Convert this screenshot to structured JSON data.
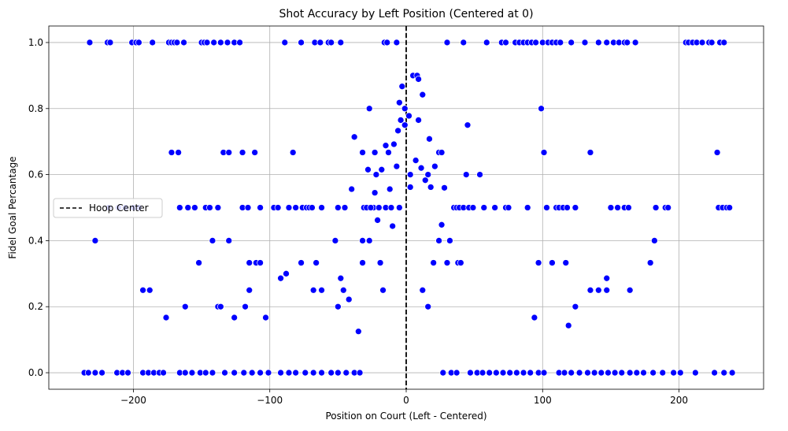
{
  "chart_data": {
    "type": "scatter",
    "title": "Shot Accuracy by Left Position (Centered at 0)",
    "xlabel": "Position on Court (Left - Centered)",
    "ylabel": "Fidel Goal Percantage",
    "xlim": [
      -262,
      262
    ],
    "ylim": [
      -0.05,
      1.05
    ],
    "xticks": [
      -200,
      -100,
      0,
      100,
      200
    ],
    "xtick_labels": [
      "−200",
      "−100",
      "0",
      "100",
      "200"
    ],
    "yticks": [
      0.0,
      0.2,
      0.4,
      0.6,
      0.8,
      1.0
    ],
    "ytick_labels": [
      "0.0",
      "0.2",
      "0.4",
      "0.6",
      "0.8",
      "1.0"
    ],
    "grid": true,
    "legend_position": "center-left",
    "reference_line": {
      "x": 0,
      "label": "Hoop Center",
      "style": "dashed",
      "color": "#000000"
    },
    "point_color": "#0000ff",
    "series": [
      {
        "points": [
          [
            -232,
            1
          ],
          [
            -219,
            1
          ],
          [
            -217,
            1
          ],
          [
            -201,
            1
          ],
          [
            -198,
            1
          ],
          [
            -196,
            1
          ],
          [
            -186,
            1
          ],
          [
            -174,
            1
          ],
          [
            -172,
            1
          ],
          [
            -170,
            1
          ],
          [
            -168,
            1
          ],
          [
            -163,
            1
          ],
          [
            -150,
            1
          ],
          [
            -148,
            1
          ],
          [
            -146,
            1
          ],
          [
            -141,
            1
          ],
          [
            -136,
            1
          ],
          [
            -131,
            1
          ],
          [
            -126,
            1
          ],
          [
            -122,
            1
          ],
          [
            -89,
            1
          ],
          [
            -77,
            1
          ],
          [
            -67,
            1
          ],
          [
            -63,
            1
          ],
          [
            -57,
            1
          ],
          [
            -55,
            1
          ],
          [
            -48,
            1
          ],
          [
            -16,
            1
          ],
          [
            -14,
            1
          ],
          [
            -7,
            1
          ],
          [
            30,
            1
          ],
          [
            42,
            1
          ],
          [
            59,
            1
          ],
          [
            70,
            1
          ],
          [
            73,
            1
          ],
          [
            80,
            1
          ],
          [
            83,
            1
          ],
          [
            86,
            1
          ],
          [
            89,
            1
          ],
          [
            92,
            1
          ],
          [
            95,
            1
          ],
          [
            100,
            1
          ],
          [
            104,
            1
          ],
          [
            107,
            1
          ],
          [
            110,
            1
          ],
          [
            113,
            1
          ],
          [
            121,
            1
          ],
          [
            131,
            1
          ],
          [
            141,
            1
          ],
          [
            147,
            1
          ],
          [
            152,
            1
          ],
          [
            156,
            1
          ],
          [
            160,
            1
          ],
          [
            162,
            1
          ],
          [
            168,
            1
          ],
          [
            205,
            1
          ],
          [
            207,
            1
          ],
          [
            210,
            1
          ],
          [
            213,
            1
          ],
          [
            217,
            1
          ],
          [
            222,
            1
          ],
          [
            224,
            1
          ],
          [
            230,
            1
          ],
          [
            233,
            1
          ],
          [
            -228,
            0.4
          ],
          [
            -172,
            0.667
          ],
          [
            -167,
            0.667
          ],
          [
            -83,
            0.667
          ],
          [
            -134,
            0.667
          ],
          [
            -130,
            0.667
          ],
          [
            -120,
            0.667
          ],
          [
            -111,
            0.667
          ],
          [
            -38,
            0.714
          ],
          [
            -32,
            0.667
          ],
          [
            -23,
            0.667
          ],
          [
            -27,
            0.8
          ],
          [
            -218,
            0.5
          ],
          [
            -211,
            0.5
          ],
          [
            -206,
            0.5
          ],
          [
            -200,
            0.5
          ],
          [
            -196,
            0.5
          ],
          [
            -166,
            0.5
          ],
          [
            -160,
            0.5
          ],
          [
            -155,
            0.5
          ],
          [
            -147,
            0.5
          ],
          [
            -144,
            0.5
          ],
          [
            -138,
            0.5
          ],
          [
            -120,
            0.5
          ],
          [
            -116,
            0.5
          ],
          [
            -107,
            0.5
          ],
          [
            -97,
            0.5
          ],
          [
            -94,
            0.5
          ],
          [
            -86,
            0.5
          ],
          [
            -81,
            0.5
          ],
          [
            -76,
            0.5
          ],
          [
            -73,
            0.5
          ],
          [
            -71,
            0.5
          ],
          [
            -69,
            0.5
          ],
          [
            -62,
            0.5
          ],
          [
            -50,
            0.5
          ],
          [
            -45,
            0.5
          ],
          [
            -31,
            0.5
          ],
          [
            -29,
            0.5
          ],
          [
            -24,
            0.5
          ],
          [
            -20,
            0.5
          ],
          [
            -15,
            0.5
          ],
          [
            -11,
            0.5
          ],
          [
            -5,
            0.5
          ],
          [
            -40,
            0.556
          ],
          [
            -32,
            0.4
          ],
          [
            -27,
            0.4
          ],
          [
            -26,
            0.5
          ],
          [
            -23,
            0.545
          ],
          [
            -21,
            0.462
          ],
          [
            -22,
            0.6
          ],
          [
            -28,
            0.615
          ],
          [
            -18,
            0.615
          ],
          [
            -15,
            0.688
          ],
          [
            -13,
            0.667
          ],
          [
            -12,
            0.556
          ],
          [
            -9,
            0.692
          ],
          [
            -10,
            0.444
          ],
          [
            -7,
            0.625
          ],
          [
            -6,
            0.733
          ],
          [
            -5,
            0.818
          ],
          [
            -3,
            0.867
          ],
          [
            -4,
            0.765
          ],
          [
            -1,
            0.8
          ],
          [
            -1,
            0.75
          ],
          [
            2,
            0.778
          ],
          [
            5,
            0.9
          ],
          [
            8,
            0.9
          ],
          [
            9,
            0.889
          ],
          [
            3,
            0.562
          ],
          [
            3,
            0.6
          ],
          [
            7,
            0.643
          ],
          [
            9,
            0.765
          ],
          [
            11,
            0.62
          ],
          [
            12,
            0.842
          ],
          [
            14,
            0.583
          ],
          [
            16,
            0.6
          ],
          [
            17,
            0.708
          ],
          [
            18,
            0.562
          ],
          [
            21,
            0.625
          ],
          [
            24,
            0.667
          ],
          [
            26,
            0.667
          ],
          [
            26,
            0.448
          ],
          [
            28,
            0.56
          ],
          [
            35,
            0.5
          ],
          [
            37,
            0.5
          ],
          [
            39,
            0.5
          ],
          [
            42,
            0.5
          ],
          [
            44,
            0.6
          ],
          [
            45,
            0.75
          ],
          [
            46,
            0.5
          ],
          [
            49,
            0.5
          ],
          [
            54,
            0.6
          ],
          [
            57,
            0.5
          ],
          [
            65,
            0.5
          ],
          [
            73,
            0.5
          ],
          [
            75,
            0.5
          ],
          [
            89,
            0.5
          ],
          [
            99,
            0.8
          ],
          [
            101,
            0.667
          ],
          [
            103,
            0.5
          ],
          [
            110,
            0.5
          ],
          [
            112,
            0.5
          ],
          [
            115,
            0.5
          ],
          [
            118,
            0.5
          ],
          [
            124,
            0.5
          ],
          [
            135,
            0.667
          ],
          [
            150,
            0.5
          ],
          [
            155,
            0.5
          ],
          [
            160,
            0.5
          ],
          [
            163,
            0.5
          ],
          [
            183,
            0.5
          ],
          [
            190,
            0.5
          ],
          [
            192,
            0.5
          ],
          [
            228,
            0.667
          ],
          [
            229,
            0.5
          ],
          [
            232,
            0.5
          ],
          [
            235,
            0.5
          ],
          [
            237,
            0.5
          ],
          [
            -32,
            0.333
          ],
          [
            -19,
            0.333
          ],
          [
            -17,
            0.25
          ],
          [
            -152,
            0.333
          ],
          [
            -115,
            0.333
          ],
          [
            -110,
            0.333
          ],
          [
            -107,
            0.333
          ],
          [
            -77,
            0.333
          ],
          [
            -66,
            0.333
          ],
          [
            -52,
            0.4
          ],
          [
            -130,
            0.4
          ],
          [
            -142,
            0.4
          ],
          [
            -115,
            0.25
          ],
          [
            -92,
            0.286
          ],
          [
            -88,
            0.3
          ],
          [
            -68,
            0.25
          ],
          [
            -62,
            0.25
          ],
          [
            -48,
            0.286
          ],
          [
            -46,
            0.25
          ],
          [
            -42,
            0.222
          ],
          [
            -50,
            0.2
          ],
          [
            -35,
            0.125
          ],
          [
            -103,
            0.167
          ],
          [
            -118,
            0.2
          ],
          [
            -126,
            0.167
          ],
          [
            -138,
            0.2
          ],
          [
            -136,
            0.2
          ],
          [
            -162,
            0.2
          ],
          [
            -193,
            0.25
          ],
          [
            -188,
            0.25
          ],
          [
            -176,
            0.167
          ],
          [
            12,
            0.25
          ],
          [
            16,
            0.2
          ],
          [
            20,
            0.333
          ],
          [
            24,
            0.4
          ],
          [
            30,
            0.333
          ],
          [
            32,
            0.4
          ],
          [
            38,
            0.333
          ],
          [
            40,
            0.333
          ],
          [
            97,
            0.333
          ],
          [
            107,
            0.333
          ],
          [
            117,
            0.333
          ],
          [
            94,
            0.167
          ],
          [
            119,
            0.143
          ],
          [
            124,
            0.2
          ],
          [
            135,
            0.25
          ],
          [
            141,
            0.25
          ],
          [
            147,
            0.286
          ],
          [
            147,
            0.25
          ],
          [
            164,
            0.25
          ],
          [
            179,
            0.333
          ],
          [
            182,
            0.4
          ],
          [
            -236,
            0
          ],
          [
            -233,
            0
          ],
          [
            -228,
            0
          ],
          [
            -223,
            0
          ],
          [
            -212,
            0
          ],
          [
            -208,
            0
          ],
          [
            -204,
            0
          ],
          [
            -193,
            0
          ],
          [
            -189,
            0
          ],
          [
            -185,
            0
          ],
          [
            -181,
            0
          ],
          [
            -178,
            0
          ],
          [
            -166,
            0
          ],
          [
            -162,
            0
          ],
          [
            -157,
            0
          ],
          [
            -151,
            0
          ],
          [
            -147,
            0
          ],
          [
            -142,
            0
          ],
          [
            -133,
            0
          ],
          [
            -126,
            0
          ],
          [
            -119,
            0
          ],
          [
            -113,
            0
          ],
          [
            -107,
            0
          ],
          [
            -101,
            0
          ],
          [
            -92,
            0
          ],
          [
            -86,
            0
          ],
          [
            -81,
            0
          ],
          [
            -74,
            0
          ],
          [
            -68,
            0
          ],
          [
            -62,
            0
          ],
          [
            -55,
            0
          ],
          [
            -50,
            0
          ],
          [
            -44,
            0
          ],
          [
            -38,
            0
          ],
          [
            -34,
            0
          ],
          [
            27,
            0
          ],
          [
            33,
            0
          ],
          [
            37,
            0
          ],
          [
            47,
            0
          ],
          [
            52,
            0
          ],
          [
            56,
            0
          ],
          [
            61,
            0
          ],
          [
            66,
            0
          ],
          [
            71,
            0
          ],
          [
            76,
            0
          ],
          [
            81,
            0
          ],
          [
            86,
            0
          ],
          [
            91,
            0
          ],
          [
            97,
            0
          ],
          [
            101,
            0
          ],
          [
            112,
            0
          ],
          [
            116,
            0
          ],
          [
            121,
            0
          ],
          [
            127,
            0
          ],
          [
            133,
            0
          ],
          [
            138,
            0
          ],
          [
            143,
            0
          ],
          [
            148,
            0
          ],
          [
            153,
            0
          ],
          [
            158,
            0
          ],
          [
            164,
            0
          ],
          [
            169,
            0
          ],
          [
            174,
            0
          ],
          [
            181,
            0
          ],
          [
            188,
            0
          ],
          [
            196,
            0
          ],
          [
            201,
            0
          ],
          [
            212,
            0
          ],
          [
            226,
            0
          ],
          [
            233,
            0
          ],
          [
            239,
            0
          ]
        ]
      }
    ]
  }
}
